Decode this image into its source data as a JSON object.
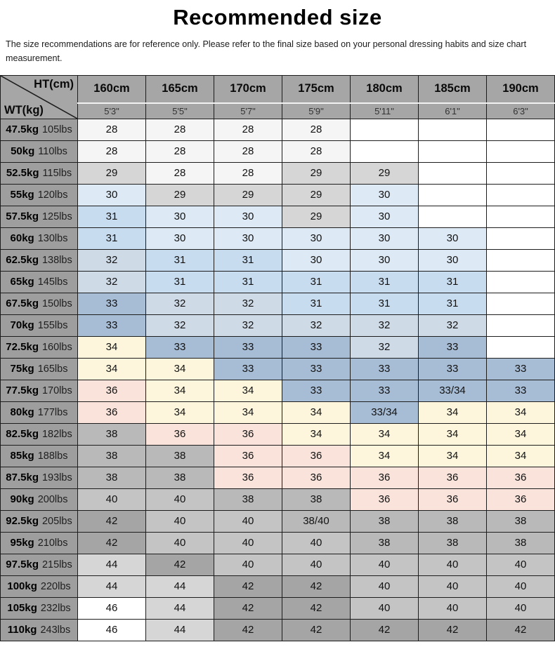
{
  "title": "Recommended size",
  "subtitle": "The size recommendations are for reference only. Please refer to the final size based on your personal dressing habits and size chart measurement.",
  "table": {
    "corner": {
      "top": "HT(cm)",
      "bottom": "WT(kg)"
    },
    "heights_cm": [
      "160cm",
      "165cm",
      "170cm",
      "175cm",
      "180cm",
      "185cm",
      "190cm"
    ],
    "heights_ft": [
      "5'3\"",
      "5'5\"",
      "5'7\"",
      "5'9\"",
      "5'11\"",
      "6'1\"",
      "6'3\""
    ],
    "rows": [
      {
        "kg": "47.5kg",
        "lbs": "105lbs",
        "sizes": [
          "28",
          "28",
          "28",
          "28",
          "",
          "",
          ""
        ]
      },
      {
        "kg": "50kg",
        "lbs": "110lbs",
        "sizes": [
          "28",
          "28",
          "28",
          "28",
          "",
          "",
          ""
        ]
      },
      {
        "kg": "52.5kg",
        "lbs": "115lbs",
        "sizes": [
          "29",
          "28",
          "28",
          "29",
          "29",
          "",
          ""
        ]
      },
      {
        "kg": "55kg",
        "lbs": "120lbs",
        "sizes": [
          "30",
          "29",
          "29",
          "29",
          "30",
          "",
          ""
        ]
      },
      {
        "kg": "57.5kg",
        "lbs": "125lbs",
        "sizes": [
          "31",
          "30",
          "30",
          "29",
          "30",
          "",
          ""
        ]
      },
      {
        "kg": "60kg",
        "lbs": "130lbs",
        "sizes": [
          "31",
          "30",
          "30",
          "30",
          "30",
          "30",
          ""
        ]
      },
      {
        "kg": "62.5kg",
        "lbs": "138lbs",
        "sizes": [
          "32",
          "31",
          "31",
          "30",
          "30",
          "30",
          ""
        ]
      },
      {
        "kg": "65kg",
        "lbs": "145lbs",
        "sizes": [
          "32",
          "31",
          "31",
          "31",
          "31",
          "31",
          ""
        ]
      },
      {
        "kg": "67.5kg",
        "lbs": "150lbs",
        "sizes": [
          "33",
          "32",
          "32",
          "31",
          "31",
          "31",
          ""
        ]
      },
      {
        "kg": "70kg",
        "lbs": "155lbs",
        "sizes": [
          "33",
          "32",
          "32",
          "32",
          "32",
          "32",
          ""
        ]
      },
      {
        "kg": "72.5kg",
        "lbs": "160lbs",
        "sizes": [
          "34",
          "33",
          "33",
          "33",
          "32",
          "33",
          ""
        ]
      },
      {
        "kg": "75kg",
        "lbs": "165lbs",
        "sizes": [
          "34",
          "34",
          "33",
          "33",
          "33",
          "33",
          "33"
        ]
      },
      {
        "kg": "77.5kg",
        "lbs": "170lbs",
        "sizes": [
          "36",
          "34",
          "34",
          "33",
          "33",
          "33/34",
          "33"
        ]
      },
      {
        "kg": "80kg",
        "lbs": "177lbs",
        "sizes": [
          "36",
          "34",
          "34",
          "34",
          "33/34",
          "34",
          "34"
        ]
      },
      {
        "kg": "82.5kg",
        "lbs": "182lbs",
        "sizes": [
          "38",
          "36",
          "36",
          "34",
          "34",
          "34",
          "34"
        ]
      },
      {
        "kg": "85kg",
        "lbs": "188lbs",
        "sizes": [
          "38",
          "38",
          "36",
          "36",
          "34",
          "34",
          "34"
        ]
      },
      {
        "kg": "87.5kg",
        "lbs": "193lbs",
        "sizes": [
          "38",
          "38",
          "36",
          "36",
          "36",
          "36",
          "36"
        ]
      },
      {
        "kg": "90kg",
        "lbs": "200lbs",
        "sizes": [
          "40",
          "40",
          "38",
          "38",
          "36",
          "36",
          "36"
        ]
      },
      {
        "kg": "92.5kg",
        "lbs": "205lbs",
        "sizes": [
          "42",
          "40",
          "40",
          "38/40",
          "38",
          "38",
          "38"
        ]
      },
      {
        "kg": "95kg",
        "lbs": "210lbs",
        "sizes": [
          "42",
          "40",
          "40",
          "40",
          "38",
          "38",
          "38"
        ]
      },
      {
        "kg": "97.5kg",
        "lbs": "215lbs",
        "sizes": [
          "44",
          "42",
          "40",
          "40",
          "40",
          "40",
          "40"
        ]
      },
      {
        "kg": "100kg",
        "lbs": "220lbs",
        "sizes": [
          "44",
          "44",
          "42",
          "42",
          "40",
          "40",
          "40"
        ]
      },
      {
        "kg": "105kg",
        "lbs": "232lbs",
        "sizes": [
          "46",
          "44",
          "42",
          "42",
          "40",
          "40",
          "40"
        ]
      },
      {
        "kg": "110kg",
        "lbs": "243lbs",
        "sizes": [
          "46",
          "44",
          "42",
          "42",
          "42",
          "42",
          "42"
        ]
      }
    ],
    "colors": {
      "header_bg": "#a6a6a6",
      "weight_col_bg": "#9e9e9e",
      "border": "#1d1d1d",
      "size_colors": {
        "28": "#f5f5f5",
        "29": "#d6d6d6",
        "30": "#dde9f5",
        "31": "#c8dcf0",
        "32": "#cfdae7",
        "33": "#a7bcd5",
        "33/34": "#a7bcd5",
        "34": "#fdf6dc",
        "36": "#f9e3da",
        "38": "#b9b9b9",
        "38/40": "#b9b9b9",
        "40": "#c4c4c4",
        "42": "#a5a5a5",
        "44": "#d6d6d6",
        "46": "#ffffff",
        "": "#ffffff"
      }
    }
  }
}
